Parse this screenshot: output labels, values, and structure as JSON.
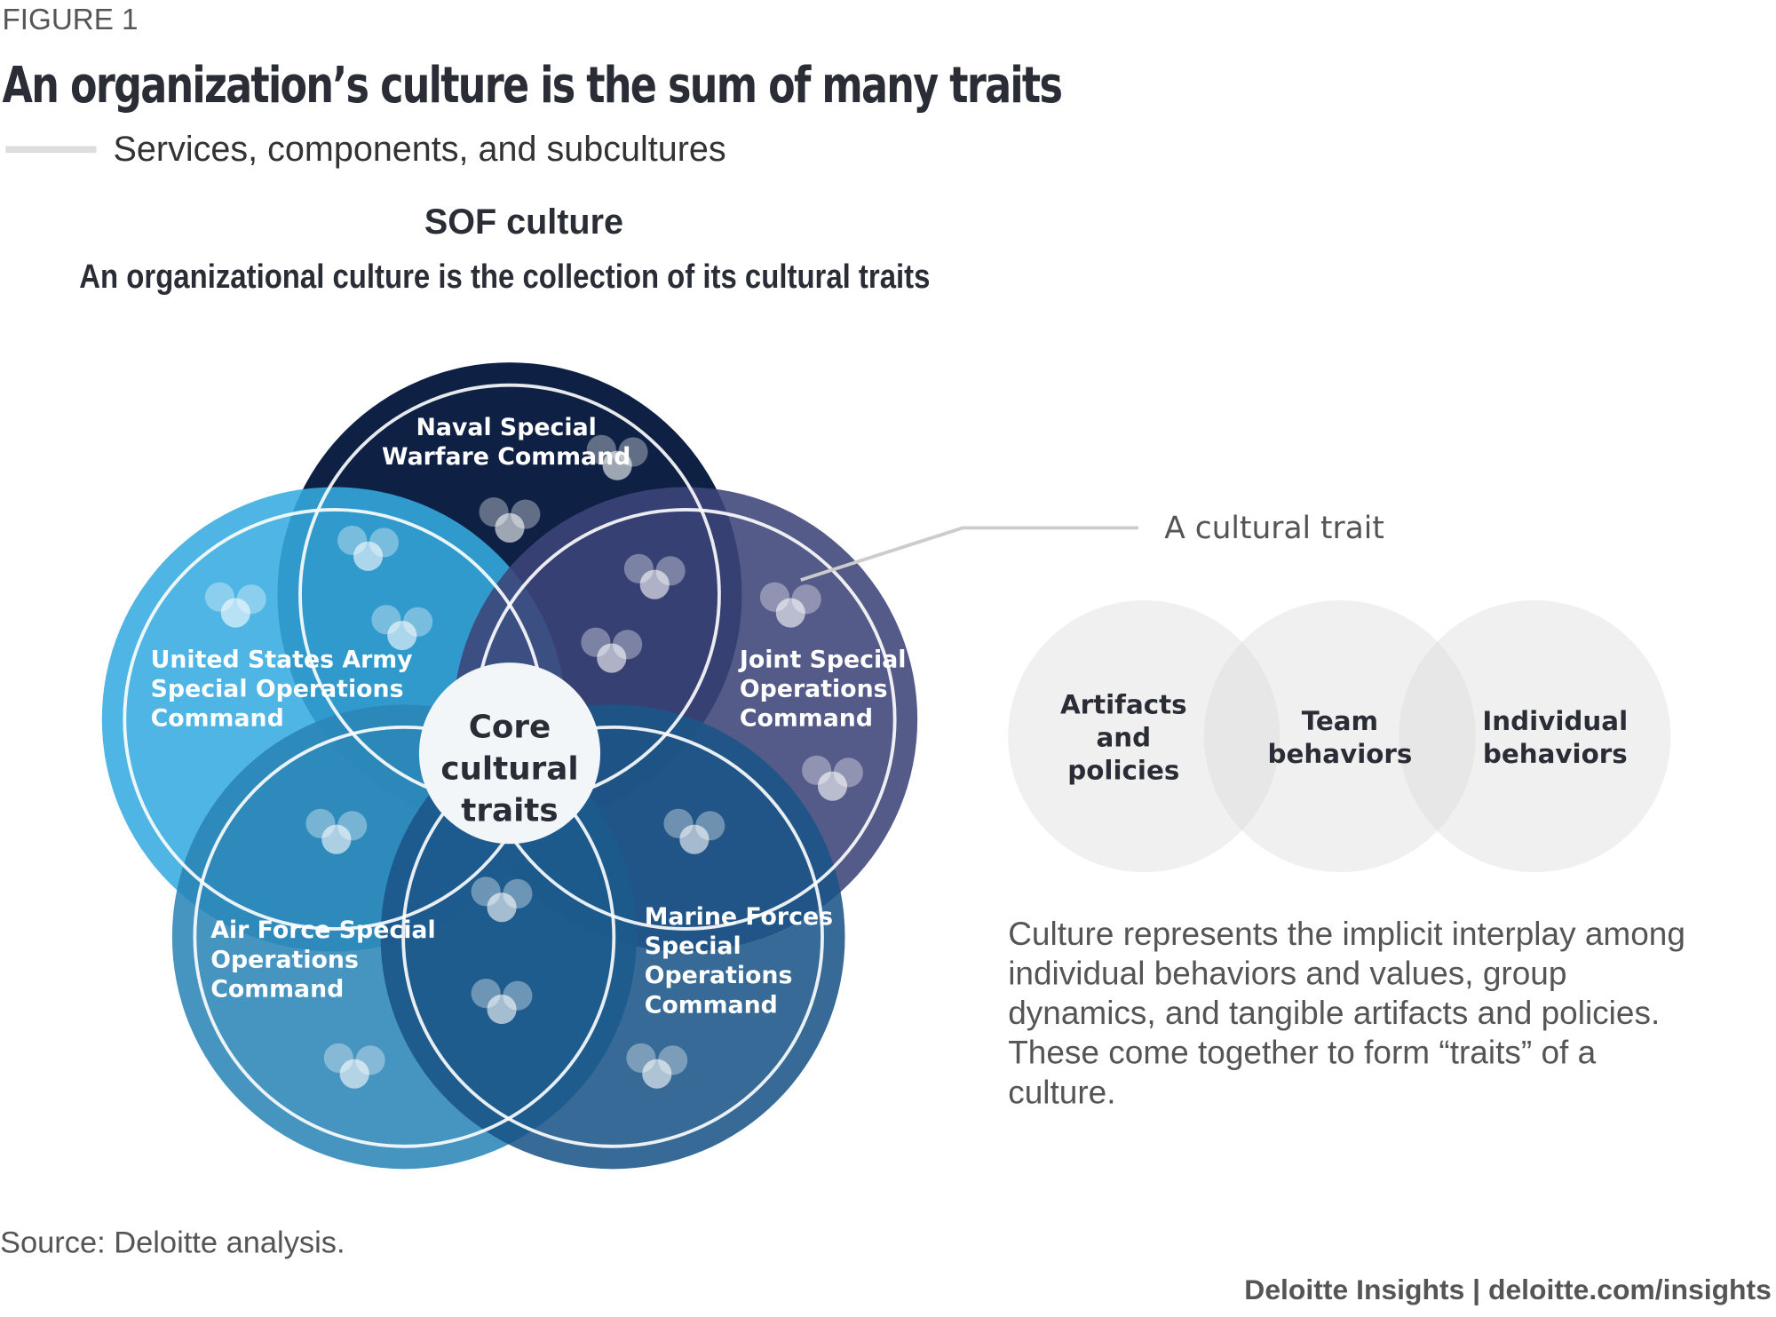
{
  "figure_label": "FIGURE 1",
  "title": "An organization’s culture is the sum of many traits",
  "subtitle": "Services, components, and subcultures",
  "diagram_heading": "SOF culture",
  "diagram_subheading": "An organizational culture is the collection of its cultural traits",
  "circles": {
    "naval": {
      "lines": [
        "Naval Special",
        "Warfare Command"
      ],
      "color": "#0e2145"
    },
    "army": {
      "lines": [
        "United States Army",
        "Special Operations",
        "Command"
      ],
      "color": "#36abe0"
    },
    "joint": {
      "lines": [
        "Joint Special",
        "Operations",
        "Command"
      ],
      "color": "#3d4479"
    },
    "airforce": {
      "lines": [
        "Air Force Special",
        "Operations",
        "Command"
      ],
      "color": "#2c85b7"
    },
    "marine": {
      "lines": [
        "Marine Forces",
        "Special",
        "Operations",
        "Command"
      ],
      "color": "#1b5587"
    },
    "core": {
      "lines": [
        "Core",
        "cultural",
        "traits"
      ]
    }
  },
  "trait_callout": "A cultural trait",
  "trait_components": [
    {
      "lines": [
        "Artifacts",
        "and",
        "policies"
      ]
    },
    {
      "lines": [
        "Team",
        "behaviors"
      ]
    },
    {
      "lines": [
        "Individual",
        "behaviors"
      ]
    }
  ],
  "description": "Culture represents the implicit interplay among individual behaviors and values, group dynamics, and tangible artifacts and policies. These come together to form “traits” of a culture.",
  "source": "Source: Deloitte analysis.",
  "brand": "Deloitte Insights | deloitte.com/insights"
}
